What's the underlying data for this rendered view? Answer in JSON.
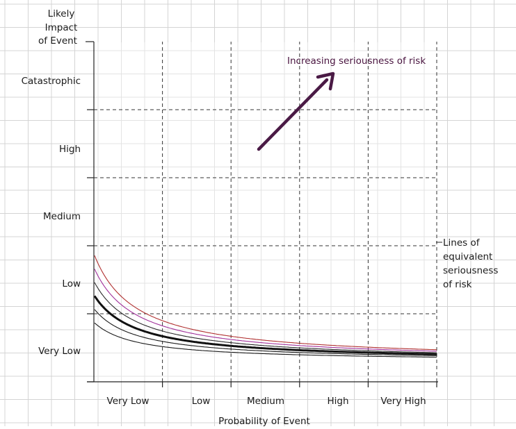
{
  "y_axis": {
    "title_lines": [
      "Likely",
      "Impact",
      "of Event"
    ],
    "categories": [
      "Very Low",
      "Low",
      "Medium",
      "High",
      "Catastrophic"
    ]
  },
  "x_axis": {
    "title": "Probability of Event",
    "categories": [
      "Very Low",
      "Low",
      "Medium",
      "High",
      "Very High"
    ]
  },
  "annotation": {
    "arrow_label": "Increasing seriousness of risk",
    "arrow_color": "#4a1a45"
  },
  "curve_label_lines": [
    "Lines of",
    "equivalent",
    "seriousness",
    "of risk"
  ],
  "curves": [
    {
      "id": "thin-1",
      "k": 1.0,
      "color": "#1a1a1a",
      "weight": "thin"
    },
    {
      "id": "thin-2",
      "k": 1.35,
      "color": "#1a1a1a",
      "weight": "thin"
    },
    {
      "id": "bold",
      "k": 1.7,
      "color": "#111111",
      "weight": "bold"
    },
    {
      "id": "thin-3",
      "k": 2.05,
      "color": "#2a2a2a",
      "weight": "thin"
    },
    {
      "id": "magenta",
      "k": 2.4,
      "color": "#a0309a",
      "weight": "thin"
    },
    {
      "id": "red",
      "k": 2.75,
      "color": "#b03030",
      "weight": "thin"
    }
  ],
  "colors": {
    "background_grid": "#d4d4d4",
    "axis": "#222222",
    "dashed_grid": "#333333"
  }
}
